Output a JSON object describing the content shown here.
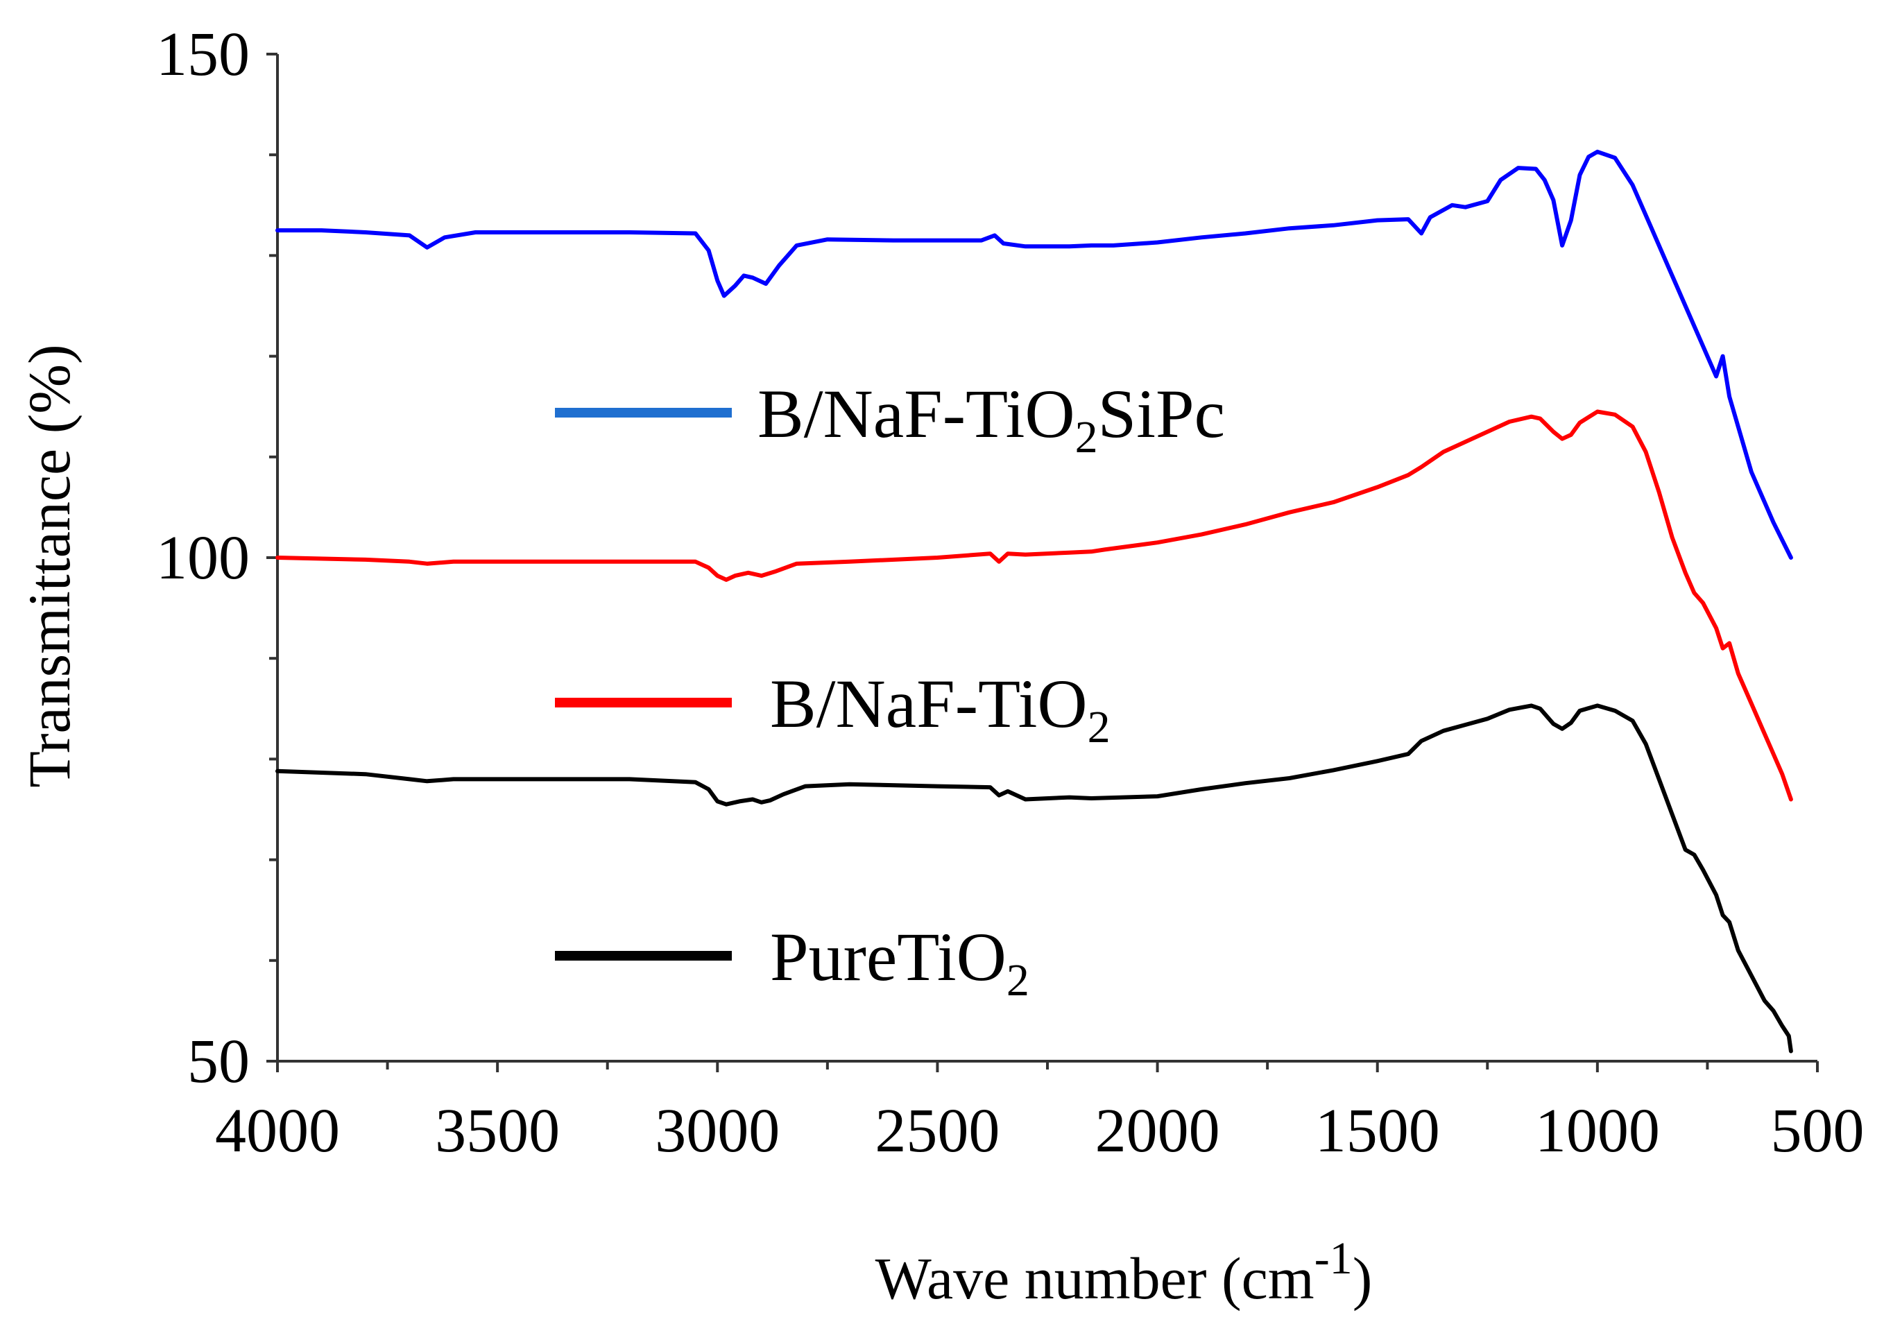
{
  "chart_data": {
    "type": "line",
    "title": "",
    "xlabel": "Wave number (cm",
    "xlabel_superscript": "-1",
    "xlabel_close": ")",
    "ylabel": "Transmittance (%)",
    "xlim": [
      4000,
      500
    ],
    "ylim": [
      50,
      150
    ],
    "x_reversed": true,
    "x_ticks": [
      4000,
      3500,
      3000,
      2500,
      2000,
      1500,
      1000,
      500
    ],
    "y_ticks": [
      50,
      100,
      150
    ],
    "x_tick_labels": [
      "4000",
      "3500",
      "3000",
      "2500",
      "2000",
      "1500",
      "1000",
      "500"
    ],
    "y_tick_labels": [
      "50",
      "100",
      "150"
    ],
    "legend_position": "center-left",
    "grid": false,
    "series": [
      {
        "name": "B/NaF-TiO2SiPc",
        "label_parts": [
          "B/NaF-TiO",
          "2",
          "SiPc"
        ],
        "color": "#0000ff",
        "legend_color": "#1f6fd0",
        "x": [
          4000,
          3900,
          3800,
          3700,
          3660,
          3620,
          3550,
          3400,
          3200,
          3050,
          3020,
          3000,
          2985,
          2960,
          2940,
          2920,
          2890,
          2860,
          2820,
          2750,
          2600,
          2400,
          2370,
          2350,
          2300,
          2200,
          2150,
          2100,
          2000,
          1900,
          1800,
          1700,
          1600,
          1500,
          1430,
          1400,
          1380,
          1330,
          1300,
          1250,
          1220,
          1180,
          1140,
          1120,
          1100,
          1080,
          1060,
          1040,
          1020,
          1000,
          960,
          920,
          880,
          840,
          800,
          760,
          730,
          715,
          700,
          680,
          650,
          600,
          560
        ],
        "y": [
          132.5,
          132.5,
          132.3,
          132.0,
          130.8,
          131.8,
          132.3,
          132.3,
          132.3,
          132.2,
          130.5,
          127.5,
          126.0,
          127.0,
          128.0,
          127.8,
          127.2,
          129.0,
          131.0,
          131.6,
          131.5,
          131.5,
          132.0,
          131.2,
          130.9,
          130.9,
          131.0,
          131.0,
          131.3,
          131.8,
          132.2,
          132.7,
          133.0,
          133.5,
          133.6,
          132.2,
          133.8,
          135.0,
          134.8,
          135.4,
          137.5,
          138.7,
          138.6,
          137.5,
          135.5,
          131.0,
          133.5,
          138.0,
          139.8,
          140.3,
          139.7,
          137.0,
          133.0,
          129.0,
          125.0,
          121.0,
          118.0,
          120.0,
          116.0,
          113.0,
          108.5,
          103.5,
          100.0
        ]
      },
      {
        "name": "B/NaF-TiO2",
        "label_parts": [
          "B/NaF-TiO",
          "2"
        ],
        "color": "#ff0000",
        "legend_color": "#ff0000",
        "x": [
          4000,
          3800,
          3700,
          3660,
          3600,
          3400,
          3200,
          3050,
          3020,
          3000,
          2980,
          2960,
          2930,
          2900,
          2870,
          2820,
          2700,
          2500,
          2380,
          2360,
          2340,
          2300,
          2200,
          2150,
          2120,
          2000,
          1900,
          1800,
          1700,
          1600,
          1500,
          1430,
          1400,
          1350,
          1300,
          1250,
          1200,
          1150,
          1130,
          1100,
          1080,
          1060,
          1040,
          1000,
          960,
          920,
          890,
          860,
          830,
          800,
          780,
          760,
          730,
          715,
          700,
          680,
          650,
          620,
          600,
          580,
          560
        ],
        "y": [
          100.0,
          99.8,
          99.6,
          99.4,
          99.6,
          99.6,
          99.6,
          99.6,
          99.0,
          98.2,
          97.8,
          98.2,
          98.5,
          98.2,
          98.6,
          99.4,
          99.6,
          100.0,
          100.4,
          99.6,
          100.4,
          100.3,
          100.5,
          100.6,
          100.8,
          101.5,
          102.3,
          103.3,
          104.5,
          105.5,
          107.0,
          108.2,
          109.0,
          110.5,
          111.5,
          112.5,
          113.5,
          114.0,
          113.8,
          112.5,
          111.8,
          112.2,
          113.4,
          114.5,
          114.2,
          113.0,
          110.5,
          106.5,
          102.0,
          98.5,
          96.5,
          95.5,
          93.0,
          91.0,
          91.5,
          88.5,
          85.5,
          82.5,
          80.5,
          78.5,
          76.0
        ]
      },
      {
        "name": "PureTiO2",
        "label_parts": [
          "PureTiO",
          "2"
        ],
        "color": "#000000",
        "legend_color": "#000000",
        "x": [
          4000,
          3800,
          3700,
          3660,
          3600,
          3400,
          3200,
          3050,
          3020,
          3000,
          2980,
          2950,
          2920,
          2900,
          2880,
          2850,
          2800,
          2700,
          2500,
          2380,
          2360,
          2340,
          2300,
          2200,
          2150,
          2000,
          1900,
          1800,
          1700,
          1600,
          1500,
          1430,
          1400,
          1350,
          1300,
          1250,
          1200,
          1150,
          1130,
          1100,
          1080,
          1060,
          1040,
          1000,
          960,
          920,
          890,
          860,
          830,
          800,
          780,
          760,
          730,
          715,
          700,
          680,
          650,
          620,
          600,
          580,
          565,
          560
        ],
        "y": [
          78.8,
          78.5,
          78.0,
          77.8,
          78.0,
          78.0,
          78.0,
          77.7,
          77.0,
          75.8,
          75.5,
          75.8,
          76.0,
          75.7,
          75.9,
          76.5,
          77.3,
          77.5,
          77.3,
          77.2,
          76.4,
          76.8,
          76.0,
          76.2,
          76.1,
          76.3,
          77.0,
          77.6,
          78.1,
          78.9,
          79.8,
          80.5,
          81.8,
          82.8,
          83.4,
          84.0,
          84.9,
          85.3,
          85.0,
          83.5,
          83.0,
          83.6,
          84.8,
          85.3,
          84.8,
          83.8,
          81.5,
          78.0,
          74.5,
          71.0,
          70.5,
          69.0,
          66.5,
          64.5,
          63.8,
          61.0,
          58.5,
          56.0,
          55.0,
          53.5,
          52.5,
          51.0
        ]
      }
    ]
  }
}
